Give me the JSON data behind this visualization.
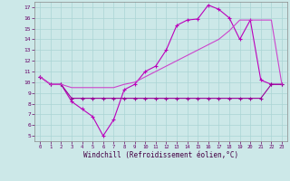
{
  "xlabel": "Windchill (Refroidissement éolien,°C)",
  "bg_color": "#cce8e8",
  "grid_color": "#aad4d4",
  "line_color1": "#bb00bb",
  "line_color2": "#990099",
  "line_color3": "#cc44cc",
  "xlim_min": -0.5,
  "xlim_max": 23.5,
  "ylim_min": 4.5,
  "ylim_max": 17.5,
  "xticks": [
    0,
    1,
    2,
    3,
    4,
    5,
    6,
    7,
    8,
    9,
    10,
    11,
    12,
    13,
    14,
    15,
    16,
    17,
    18,
    19,
    20,
    21,
    22,
    23
  ],
  "yticks": [
    5,
    6,
    7,
    8,
    9,
    10,
    11,
    12,
    13,
    14,
    15,
    16,
    17
  ],
  "line1_x": [
    0,
    1,
    2,
    3,
    4,
    5,
    6,
    7,
    8,
    9,
    10,
    11,
    12,
    13,
    14,
    15,
    16,
    17,
    18,
    19,
    20,
    21,
    22,
    23
  ],
  "line1_y": [
    10.5,
    9.8,
    9.8,
    8.2,
    7.5,
    6.8,
    5.0,
    6.5,
    9.3,
    9.8,
    11.0,
    11.5,
    13.0,
    15.3,
    15.8,
    15.9,
    17.2,
    16.8,
    16.0,
    14.0,
    15.8,
    10.2,
    9.8,
    9.8
  ],
  "line2_x": [
    0,
    1,
    2,
    3,
    4,
    5,
    6,
    7,
    8,
    9,
    10,
    11,
    12,
    13,
    14,
    15,
    16,
    17,
    18,
    19,
    20,
    21,
    22,
    23
  ],
  "line2_y": [
    10.5,
    9.8,
    9.8,
    8.5,
    8.5,
    8.5,
    8.5,
    8.5,
    8.5,
    8.5,
    8.5,
    8.5,
    8.5,
    8.5,
    8.5,
    8.5,
    8.5,
    8.5,
    8.5,
    8.5,
    8.5,
    8.5,
    9.8,
    9.8
  ],
  "line3_x": [
    0,
    1,
    2,
    3,
    4,
    5,
    6,
    7,
    8,
    9,
    10,
    11,
    12,
    13,
    14,
    15,
    16,
    17,
    18,
    19,
    20,
    21,
    22,
    23
  ],
  "line3_y": [
    10.5,
    9.8,
    9.8,
    9.5,
    9.5,
    9.5,
    9.5,
    9.5,
    9.8,
    10.0,
    10.5,
    11.0,
    11.5,
    12.0,
    12.5,
    13.0,
    13.5,
    14.0,
    14.8,
    15.8,
    15.8,
    15.8,
    15.8,
    9.8
  ]
}
